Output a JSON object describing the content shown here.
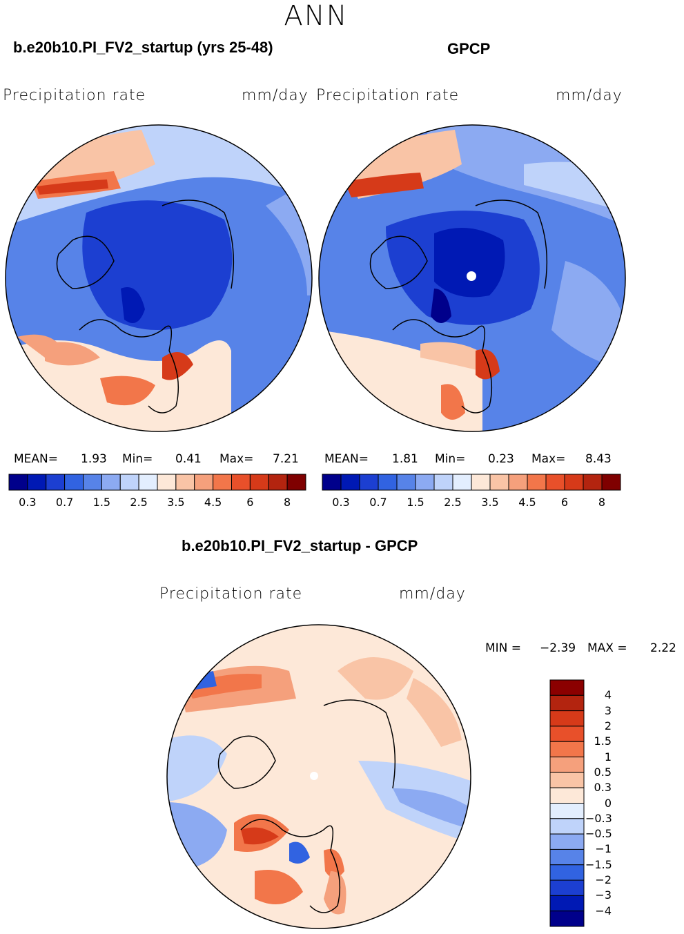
{
  "season": "ANN",
  "panels": [
    {
      "case_title": "b.e20b10.PI_FV2_startup (yrs 25-48)",
      "variable": "Precipitation rate",
      "units": "mm/day",
      "stats": {
        "mean_label": "MEAN=",
        "mean": "1.93",
        "min_label": "Min=",
        "min": "0.41",
        "max_label": "Max=",
        "max": "7.21"
      }
    },
    {
      "case_title": "GPCP",
      "variable": "Precipitation rate",
      "units": "mm/day",
      "stats": {
        "mean_label": "MEAN=",
        "mean": "1.81",
        "min_label": "Min=",
        "min": "0.23",
        "max_label": "Max=",
        "max": "8.43"
      }
    }
  ],
  "colorbar_levels": [
    "0.3",
    "0.7",
    "1.5",
    "2.5",
    "3.5",
    "4.5",
    "6",
    "8"
  ],
  "colorbar_colors": [
    "#00008b",
    "#0019b4",
    "#1c3fd1",
    "#3163e1",
    "#5783e8",
    "#8caaf2",
    "#bfd3fa",
    "#e3eefe",
    "#fde8d8",
    "#f9c4a6",
    "#f5a07c",
    "#f2764a",
    "#e8502a",
    "#d63a19",
    "#b3240f",
    "#7f0000"
  ],
  "diff": {
    "title": "b.e20b10.PI_FV2_startup - GPCP",
    "variable": "Precipitation rate",
    "units": "mm/day",
    "min_label": "MIN =",
    "min": "−2.39",
    "max_label": "MAX =",
    "max": "2.22",
    "levels": [
      "4",
      "3",
      "2",
      "1.5",
      "1",
      "0.5",
      "0.3",
      "0",
      "−0.3",
      "−0.5",
      "−1",
      "−1.5",
      "−2",
      "−3",
      "−4"
    ],
    "colors": [
      "#8b0000",
      "#b3240f",
      "#d63a19",
      "#e8502a",
      "#f2764a",
      "#f5a07c",
      "#f9c4a6",
      "#fde8d8",
      "#e3eefe",
      "#bfd3fa",
      "#8caaf2",
      "#5783e8",
      "#3163e1",
      "#1c3fd1",
      "#0019b4",
      "#00008b"
    ]
  },
  "map_colors": {
    "ocean_low": "#1c3fd1",
    "ocean_mid": "#3163e1",
    "ocean_light": "#5783e8",
    "pale_blue": "#8caaf2",
    "very_pale": "#bfd3fa",
    "cream": "#fde8d8",
    "peach": "#f9c4a6",
    "salmon": "#f5a07c",
    "orange": "#f2764a",
    "red": "#d63a19",
    "dark": "#0019b4",
    "darkest": "#00008b"
  }
}
